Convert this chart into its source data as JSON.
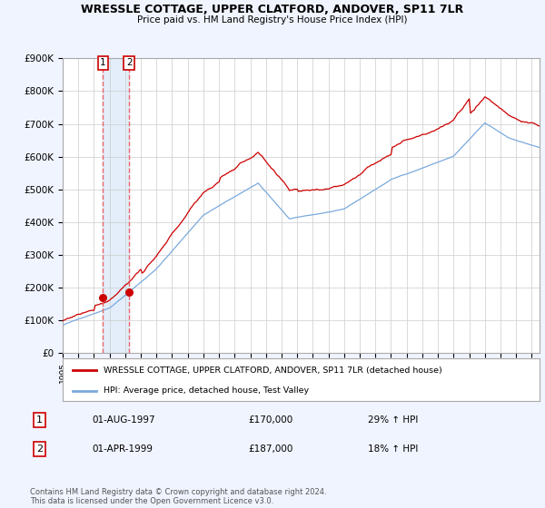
{
  "title": "WRESSLE COTTAGE, UPPER CLATFORD, ANDOVER, SP11 7LR",
  "subtitle": "Price paid vs. HM Land Registry's House Price Index (HPI)",
  "legend_label_red": "WRESSLE COTTAGE, UPPER CLATFORD, ANDOVER, SP11 7LR (detached house)",
  "legend_label_blue": "HPI: Average price, detached house, Test Valley",
  "footer": "Contains HM Land Registry data © Crown copyright and database right 2024.\nThis data is licensed under the Open Government Licence v3.0.",
  "table": [
    {
      "num": "1",
      "date": "01-AUG-1997",
      "price": "£170,000",
      "hpi": "29% ↑ HPI"
    },
    {
      "num": "2",
      "date": "01-APR-1999",
      "price": "£187,000",
      "hpi": "18% ↑ HPI"
    }
  ],
  "sale1_x": 1997.583,
  "sale1_y": 170000,
  "sale2_x": 1999.25,
  "sale2_y": 187000,
  "vline1_x": 1997.583,
  "vline2_x": 1999.25,
  "ylim": [
    0,
    900000
  ],
  "xlim_left": 1995.0,
  "xlim_right": 2025.5,
  "ylabel_ticks": [
    0,
    100000,
    200000,
    300000,
    400000,
    500000,
    600000,
    700000,
    800000,
    900000
  ],
  "ytick_labels": [
    "£0",
    "£100K",
    "£200K",
    "£300K",
    "£400K",
    "£500K",
    "£600K",
    "£700K",
    "£800K",
    "£900K"
  ],
  "xtick_years": [
    1995,
    1996,
    1997,
    1998,
    1999,
    2000,
    2001,
    2002,
    2003,
    2004,
    2005,
    2006,
    2007,
    2008,
    2009,
    2010,
    2011,
    2012,
    2013,
    2014,
    2015,
    2016,
    2017,
    2018,
    2019,
    2020,
    2021,
    2022,
    2023,
    2024,
    2025
  ],
  "red_color": "#cc0000",
  "blue_color": "#7aaadd",
  "vline_color": "#ee6666",
  "shade_color": "#d8e8f8",
  "background_color": "#f0f4ff",
  "plot_bg": "#ffffff",
  "grid_color": "#cccccc"
}
